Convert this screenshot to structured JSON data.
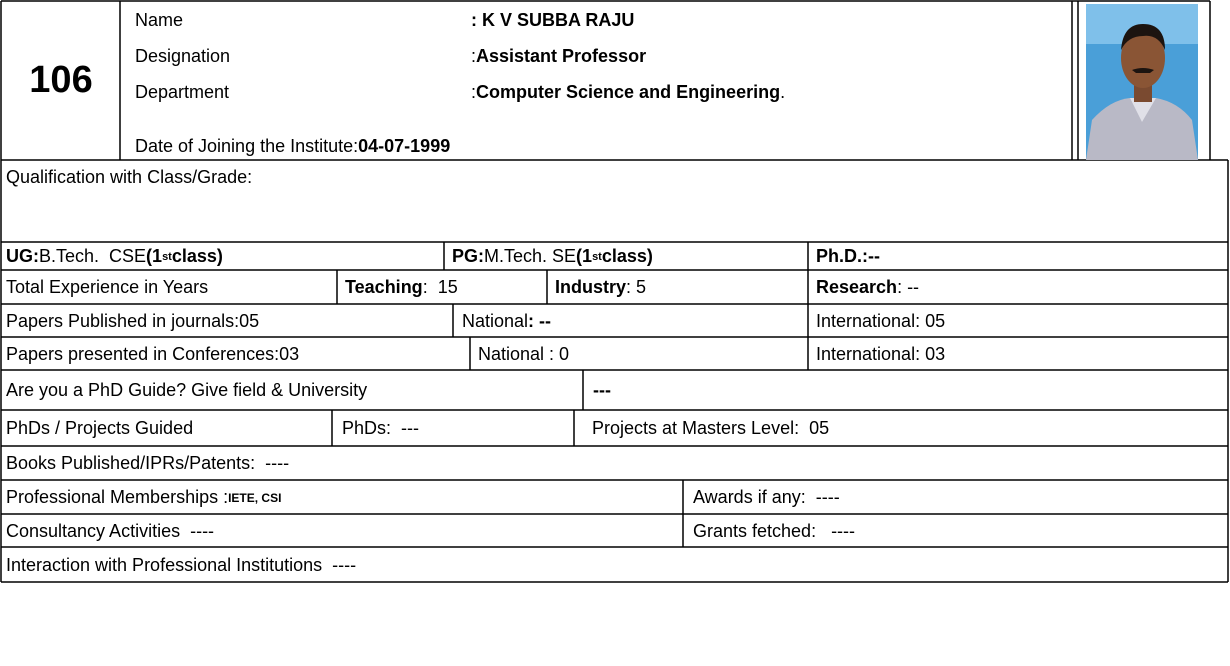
{
  "header": {
    "number": "106",
    "name_label": "Name",
    "name_value": ": K V SUBBA RAJU",
    "designation_label": "Designation",
    "designation_sep": ":",
    "designation_value": "Assistant Professor",
    "department_label": "Department",
    "department_sep": ":",
    "department_value": "Computer Science and Engineering",
    "department_end": ".",
    "doj_label": "Date of Joining the Institute:",
    "doj_value": "04-07-1999"
  },
  "qualification": {
    "heading": "Qualification with Class/Grade:",
    "ug_label": "UG:",
    "ug_degree": "B.Tech.  CSE",
    "ug_class_pre": "(1",
    "ug_class_sup": "st",
    "ug_class_post": "class)",
    "pg_label": "PG:",
    "pg_degree": "M.Tech. SE",
    "pg_class_pre": "(1",
    "pg_class_sup": "st",
    "pg_class_post": "class)",
    "phd_label": "Ph.D.:",
    "phd_value": "--"
  },
  "experience": {
    "label": "Total Experience in Years",
    "teaching_label": "Teaching",
    "teaching_value": ":  15",
    "industry_label": "Industry",
    "industry_value": ": 5",
    "research_label": "Research",
    "research_value": ": --"
  },
  "journals": {
    "label": "Papers Published in journals:05",
    "national_label": "National",
    "national_value": ": --",
    "international": "International: 05"
  },
  "conferences": {
    "label": "Papers presented in Conferences:03",
    "national": "National : 0",
    "international": "International: 03"
  },
  "phd_guide": {
    "question": "Are you a PhD Guide? Give field & University",
    "answer": "---"
  },
  "guided": {
    "label": "PhDs / Projects Guided",
    "phds": "PhDs:  ---",
    "projects": "Projects at Masters Level:  05"
  },
  "books": "Books Published/IPRs/Patents:  ----",
  "memberships": {
    "label": "Professional Memberships :",
    "value": "IETE, CSI"
  },
  "awards": "Awards if any:  ----",
  "consultancy": "Consultancy Activities  ----",
  "grants": "Grants fetched:   ----",
  "interaction": "Interaction with Professional Institutions  ----"
}
